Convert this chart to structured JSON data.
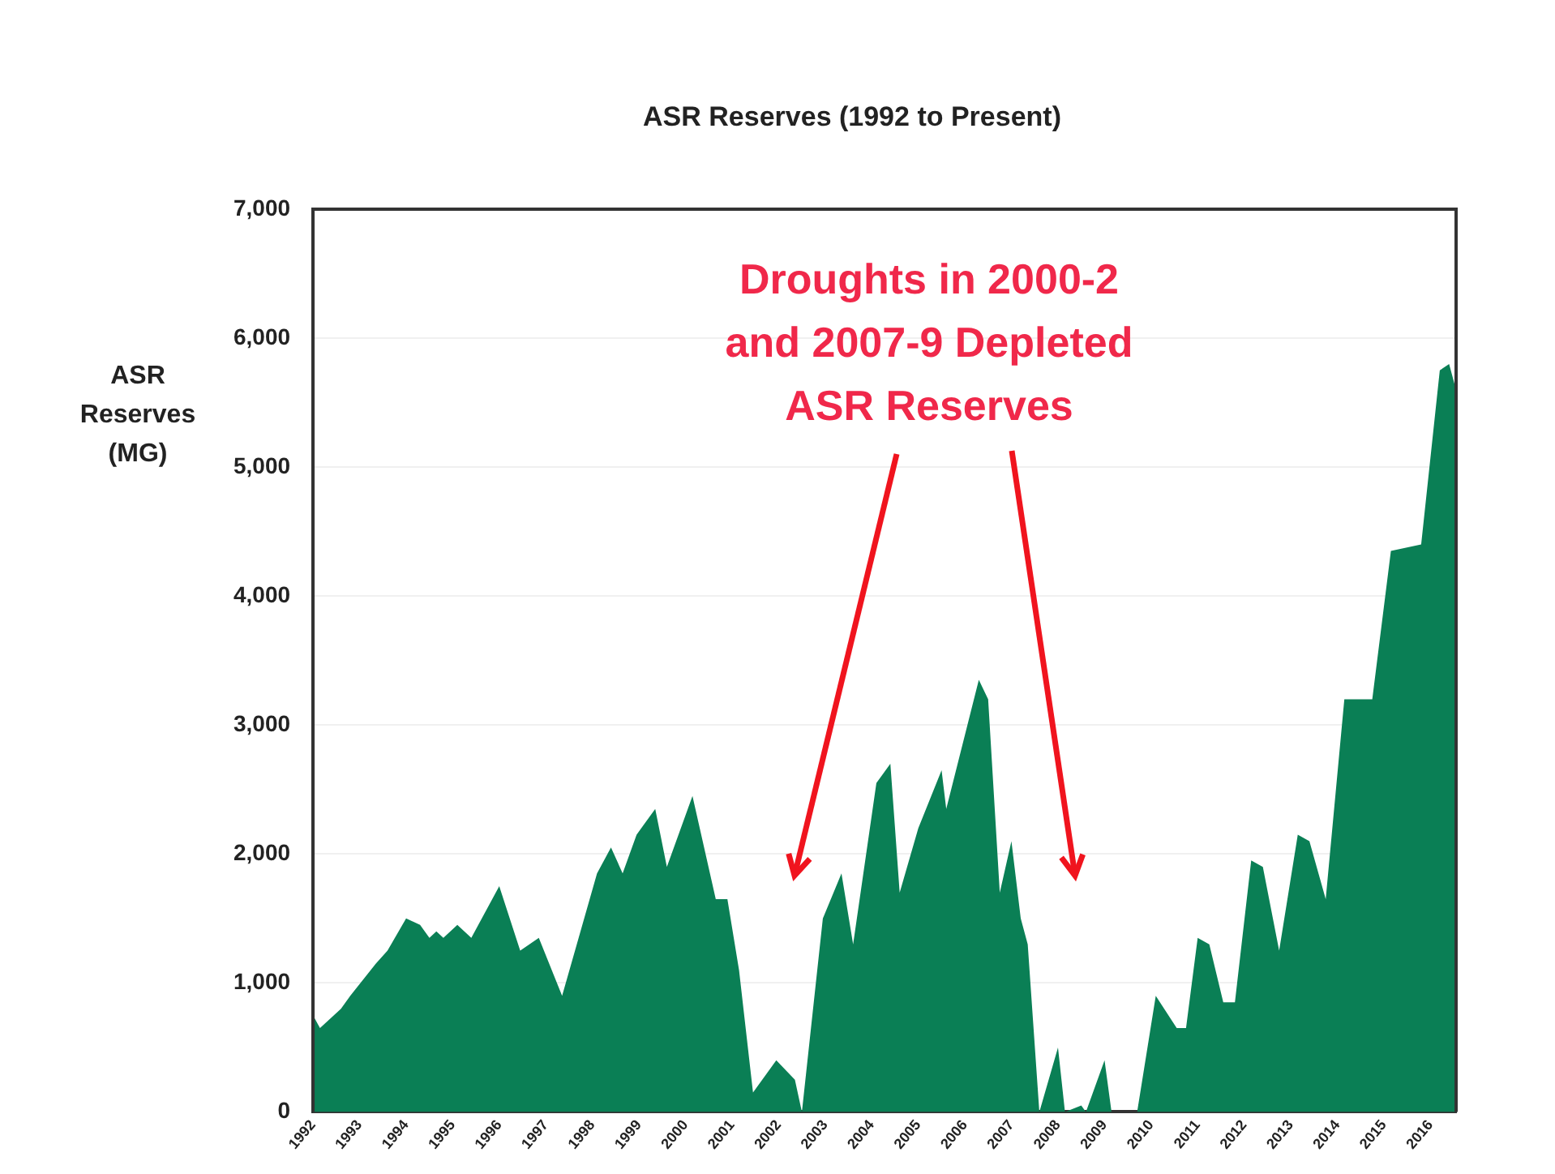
{
  "chart_data": {
    "type": "area",
    "title": "ASR Reserves (1992 to Present)",
    "ylabel": "ASR Reserves (MG)",
    "annotations": [
      "Droughts in 2000-2 and 2007-9 Depleted ASR Reserves"
    ],
    "x": [
      1992.0,
      1992.15,
      1992.6,
      1992.8,
      1993.35,
      1993.6,
      1994.0,
      1994.3,
      1994.5,
      1994.65,
      1994.8,
      1995.1,
      1995.4,
      1996.0,
      1996.45,
      1996.85,
      1997.35,
      1998.1,
      1998.4,
      1998.65,
      1998.95,
      1999.35,
      1999.6,
      2000.15,
      2000.65,
      2000.9,
      2001.15,
      2001.45,
      2001.95,
      2002.35,
      2002.5,
      2002.95,
      2003.35,
      2003.6,
      2004.1,
      2004.4,
      2004.6,
      2005.0,
      2005.5,
      2005.6,
      2006.3,
      2006.5,
      2006.75,
      2007.0,
      2007.2,
      2007.35,
      2007.6,
      2008.0,
      2008.15,
      2008.5,
      2008.6,
      2009.0,
      2009.15,
      2009.7,
      2010.1,
      2010.55,
      2010.75,
      2011.0,
      2011.25,
      2011.55,
      2011.8,
      2012.15,
      2012.4,
      2012.75,
      2013.15,
      2013.4,
      2013.75,
      2014.15,
      2014.75,
      2015.15,
      2015.8,
      2016.2,
      2016.4,
      2016.55
    ],
    "series": [
      {
        "color": "#0a7f55",
        "values": [
          750,
          650,
          800,
          900,
          1150,
          1250,
          1500,
          1450,
          1350,
          1400,
          1350,
          1450,
          1350,
          1750,
          1250,
          1350,
          900,
          1850,
          2050,
          1850,
          2150,
          2350,
          1900,
          2450,
          1650,
          1650,
          1100,
          150,
          400,
          250,
          0,
          1500,
          1850,
          1300,
          2550,
          2700,
          1700,
          2200,
          2650,
          2350,
          3350,
          3200,
          1700,
          2100,
          1500,
          1300,
          0,
          500,
          0,
          50,
          0,
          400,
          0,
          0,
          900,
          650,
          650,
          1350,
          1300,
          850,
          850,
          1950,
          1900,
          1250,
          2150,
          2100,
          1650,
          3200,
          3200,
          4350,
          4400,
          5750,
          5800,
          5600
        ]
      }
    ],
    "xlim": [
      1992,
      2016.55
    ],
    "xticks": [
      1992,
      1993,
      1994,
      1995,
      1996,
      1997,
      1998,
      1999,
      2000,
      2001,
      2002,
      2003,
      2004,
      2005,
      2006,
      2007,
      2008,
      2009,
      2010,
      2011,
      2012,
      2013,
      2014,
      2015,
      2016
    ],
    "ylim": [
      0,
      7000
    ],
    "yticks": [
      {
        "value": 0,
        "label": "0"
      },
      {
        "value": 1000,
        "label": "1,000"
      },
      {
        "value": 2000,
        "label": "2,000"
      },
      {
        "value": 3000,
        "label": "3,000"
      },
      {
        "value": 4000,
        "label": "4,000"
      },
      {
        "value": 5000,
        "label": "5,000"
      },
      {
        "value": 6000,
        "label": "6,000"
      },
      {
        "value": 7000,
        "label": "7,000"
      }
    ],
    "grid": "y",
    "legend": false
  }
}
